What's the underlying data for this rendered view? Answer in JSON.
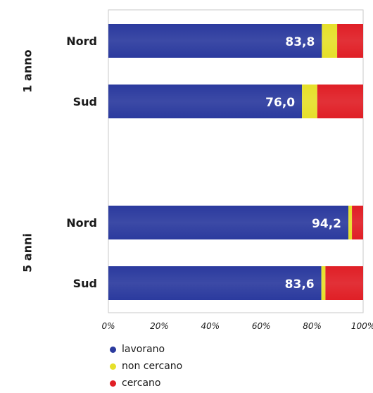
{
  "chart_data": {
    "type": "bar",
    "orientation": "horizontal",
    "stacked": "percent",
    "groups": [
      {
        "label": "1 anno",
        "categories": [
          "Nord",
          "Sud"
        ]
      },
      {
        "label": "5 anni",
        "categories": [
          "Nord",
          "Sud"
        ]
      }
    ],
    "categories": [
      "Nord",
      "Sud",
      "Nord",
      "Sud"
    ],
    "series": [
      {
        "name": "lavorano",
        "color": "#2b3a9e",
        "values": [
          83.8,
          76.0,
          94.2,
          83.6
        ]
      },
      {
        "name": "non cercano",
        "color": "#e6e02a",
        "values": [
          6.0,
          6.0,
          1.4,
          1.6
        ]
      },
      {
        "name": "cercano",
        "color": "#e01f26",
        "values": [
          10.2,
          18.0,
          4.4,
          14.8
        ]
      }
    ],
    "data_labels": [
      "83,8",
      "76,0",
      "94,2",
      "83,6"
    ],
    "x_ticks": [
      "0%",
      "20%",
      "40%",
      "60%",
      "80%",
      "100%"
    ],
    "xlim": [
      0,
      100
    ],
    "grid": false,
    "legend_position": "bottom-left"
  }
}
